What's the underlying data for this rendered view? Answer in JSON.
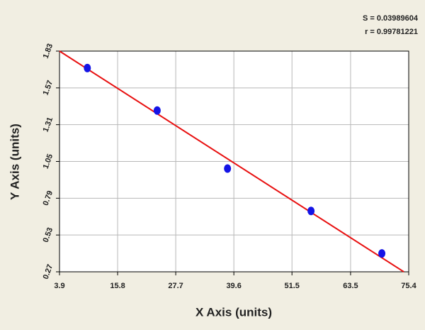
{
  "chart_data": {
    "type": "scatter",
    "x_label": "X Axis (units)",
    "y_label": "Y Axis (units)",
    "annotations": [
      "S = 0.03989604",
      "r = 0.99781221"
    ],
    "series": [
      {
        "color": "#1414e6",
        "x": [
          9.6,
          23.9,
          38.3,
          55.4,
          69.9
        ],
        "values": [
          1.71,
          1.41,
          1.0,
          0.7,
          0.4
        ]
      }
    ],
    "fit_line": {
      "color": "#e81010",
      "x": [
        3.9,
        74.4
      ],
      "y": [
        1.83,
        0.27
      ]
    },
    "xlim": [
      3.9,
      75.4
    ],
    "xticks": [
      3.9,
      15.8,
      27.7,
      39.6,
      51.5,
      63.5,
      75.4
    ],
    "ylim": [
      0.27,
      1.83
    ],
    "yticks": [
      0.27,
      0.53,
      0.79,
      1.05,
      1.31,
      1.57,
      1.83
    ],
    "grid": true
  }
}
